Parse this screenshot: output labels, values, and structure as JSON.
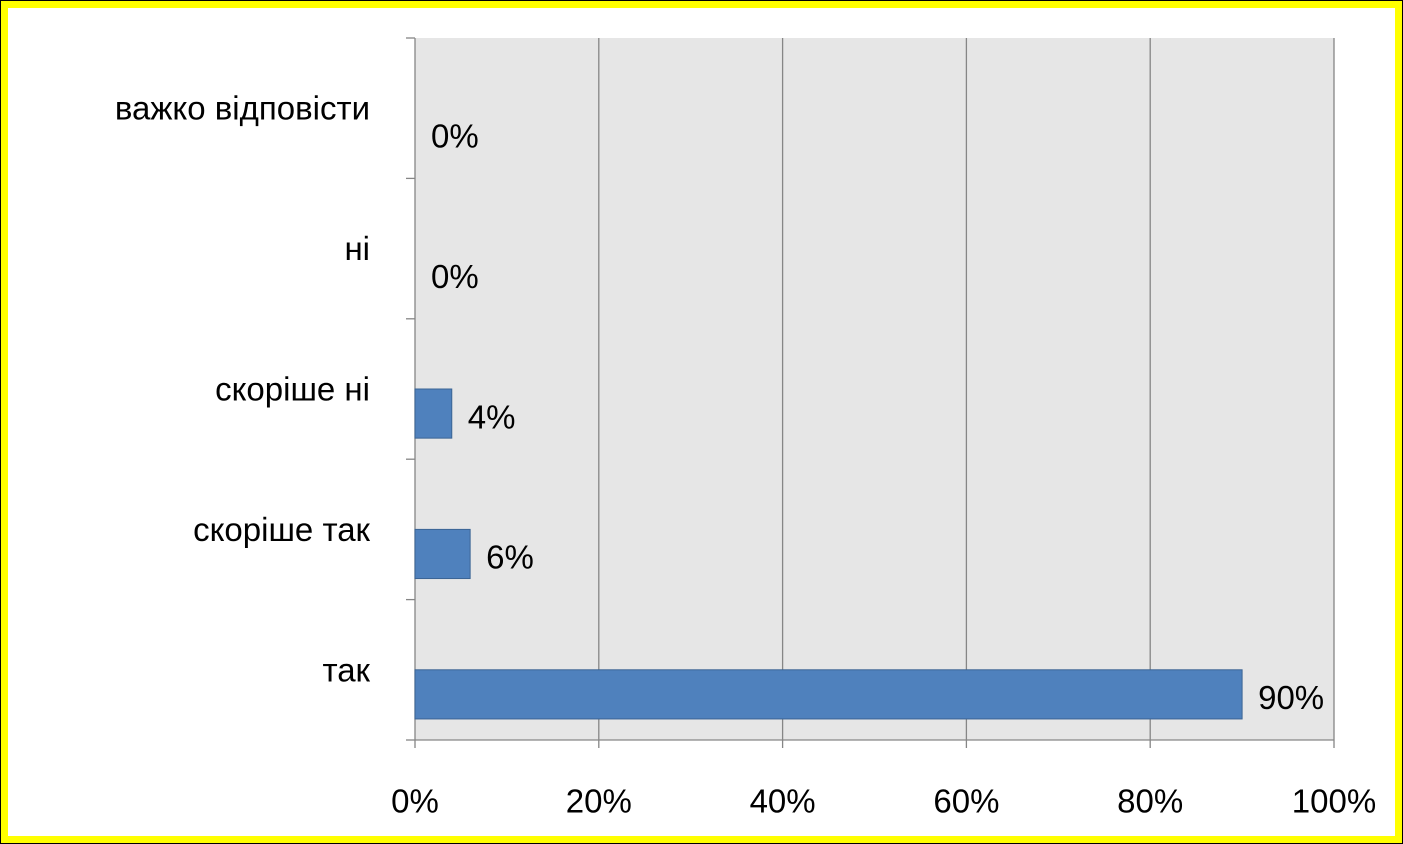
{
  "chart_data": {
    "type": "bar",
    "orientation": "horizontal",
    "categories": [
      "важко відповісти",
      "ні",
      "скоріше ні",
      "скоріше так",
      "так"
    ],
    "values": [
      0,
      0,
      4,
      6,
      90
    ],
    "value_labels": [
      "0%",
      "0%",
      "4%",
      "6%",
      "90%"
    ],
    "color": "#4f81bd",
    "xlim": [
      0,
      100
    ],
    "xticks": [
      {
        "value": 0,
        "label": "0%"
      },
      {
        "value": 20,
        "label": "20%"
      },
      {
        "value": 40,
        "label": "40%"
      },
      {
        "value": 60,
        "label": "60%"
      },
      {
        "value": 80,
        "label": "80%"
      },
      {
        "value": 100,
        "label": "100%"
      }
    ],
    "grid": true
  }
}
